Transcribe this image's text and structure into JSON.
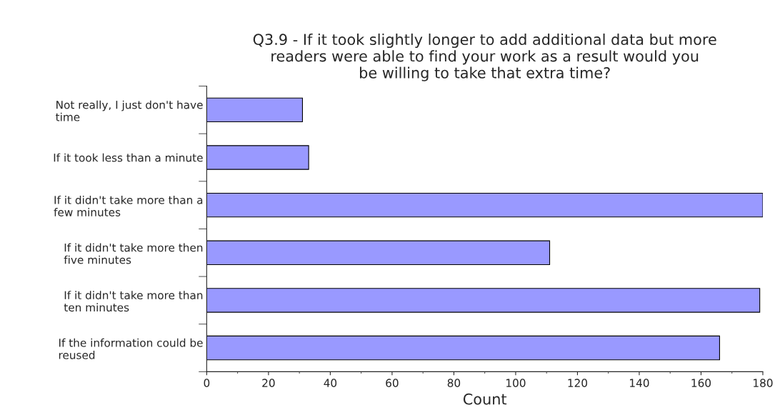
{
  "chart_data": {
    "type": "bar",
    "orientation": "horizontal",
    "title": "Q3.9 - If it took slightly longer to add additional data but more\nreaders were able to find your work as a result would you\nbe willing to take that extra time?",
    "xlabel": "Count",
    "categories": [
      "Not really, I just don't have\ntime",
      "If it took less than a minute",
      "If it didn't take more than a\nfew minutes",
      "If it didn't take more then\nfive minutes",
      "If it didn't take more than\nten minutes",
      "If the information could be\nreused"
    ],
    "values": [
      31,
      33,
      180,
      111,
      179,
      166
    ],
    "color": "#9999ff",
    "xlim": [
      0,
      180
    ],
    "xticks": [
      0,
      20,
      40,
      60,
      80,
      100,
      120,
      140,
      160,
      180
    ],
    "grid": false,
    "legend": false
  }
}
